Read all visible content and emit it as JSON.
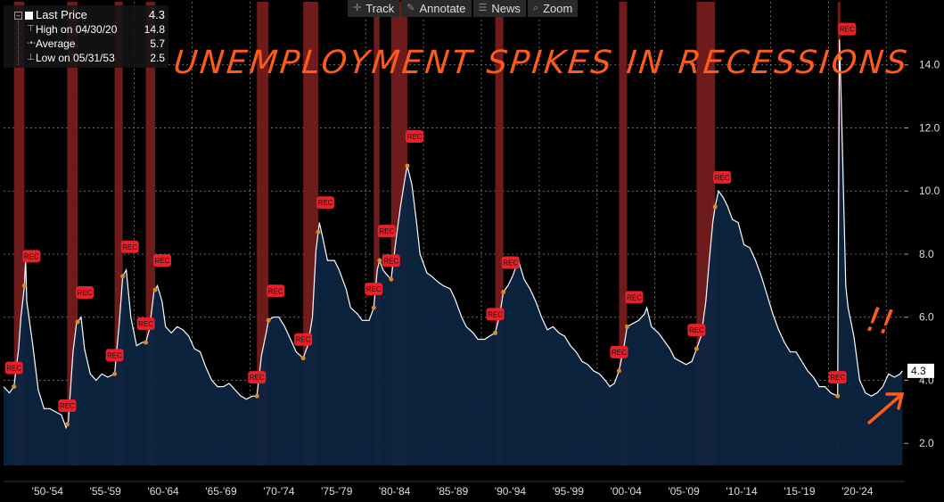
{
  "toolbar": {
    "items": [
      {
        "label": "Track",
        "icon": "crosshair-icon"
      },
      {
        "label": "Annotate",
        "icon": "pen-icon"
      },
      {
        "label": "News",
        "icon": "news-icon"
      },
      {
        "label": "Zoom",
        "icon": "magnifier-icon"
      }
    ]
  },
  "legend": {
    "main_label": "Last Price",
    "main_value": "4.3",
    "high_label": "High on 04/30/20",
    "high_value": "14.8",
    "avg_label": "Average",
    "avg_value": "5.7",
    "low_label": "Low on 05/31/53",
    "low_value": "2.5"
  },
  "annotation": {
    "text": "UNEMPLOYMENT SPIKES IN RECESSIONS",
    "exclaim": "!!"
  },
  "colors": {
    "line": "#ffffff",
    "area": "#0c2440",
    "recession": "#7a1e1e",
    "rec_marker": "#e8202a",
    "annotation": "#ff5a1a",
    "grid": "#8c8c8c"
  },
  "chart_data": {
    "type": "area",
    "ylim": [
      1.3,
      16.0
    ],
    "xlim": [
      1948.0,
      2025.9
    ],
    "yticks": [
      2.0,
      4.0,
      6.0,
      8.0,
      10.0,
      12.0,
      14.0
    ],
    "ytick_labels": [
      "2.0",
      "4.0",
      "6.0",
      "8.0",
      "10.0",
      "12.0",
      "14.0"
    ],
    "xtick_labels": [
      "'50-'54",
      "'55-'59",
      "'60-'64",
      "'65-'69",
      "'70-'74",
      "'75-'79",
      "'80-'84",
      "'85-'89",
      "'90-'94",
      "'95-'99",
      "'00-'04",
      "'05-'09",
      "'10-'14",
      "'15-'19",
      "'20-'24"
    ],
    "last_value_label": "4.3",
    "grid": true,
    "rec_marker_label": "REC",
    "recessions": [
      [
        1948.9,
        1949.8
      ],
      [
        1953.5,
        1954.4
      ],
      [
        1957.6,
        1958.3
      ],
      [
        1960.3,
        1961.1
      ],
      [
        1969.9,
        1970.9
      ],
      [
        1973.9,
        1975.2
      ],
      [
        1980.0,
        1980.5
      ],
      [
        1981.5,
        1982.9
      ],
      [
        1990.5,
        1991.2
      ],
      [
        2001.2,
        2001.9
      ],
      [
        2007.9,
        2009.5
      ],
      [
        2020.1,
        2020.3
      ]
    ],
    "series": [
      {
        "values": [
          [
            1948.0,
            3.8
          ],
          [
            1948.5,
            3.6
          ],
          [
            1948.9,
            3.8
          ],
          [
            1949.3,
            5.0
          ],
          [
            1949.5,
            6.0
          ],
          [
            1949.8,
            7.0
          ],
          [
            1949.9,
            7.9
          ],
          [
            1950.0,
            6.5
          ],
          [
            1950.5,
            5.2
          ],
          [
            1951.0,
            3.7
          ],
          [
            1951.5,
            3.1
          ],
          [
            1952.0,
            3.1
          ],
          [
            1952.5,
            3.0
          ],
          [
            1953.0,
            2.9
          ],
          [
            1953.4,
            2.5
          ],
          [
            1953.6,
            2.7
          ],
          [
            1954.0,
            4.9
          ],
          [
            1954.3,
            5.8
          ],
          [
            1954.7,
            6.0
          ],
          [
            1955.0,
            5.0
          ],
          [
            1955.5,
            4.2
          ],
          [
            1956.0,
            4.0
          ],
          [
            1956.5,
            4.2
          ],
          [
            1957.0,
            4.1
          ],
          [
            1957.6,
            4.2
          ],
          [
            1958.0,
            5.8
          ],
          [
            1958.3,
            7.3
          ],
          [
            1958.6,
            7.5
          ],
          [
            1959.0,
            6.0
          ],
          [
            1959.5,
            5.1
          ],
          [
            1960.0,
            5.2
          ],
          [
            1960.3,
            5.2
          ],
          [
            1960.6,
            5.6
          ],
          [
            1961.0,
            6.8
          ],
          [
            1961.3,
            7.0
          ],
          [
            1961.7,
            6.5
          ],
          [
            1962.0,
            5.7
          ],
          [
            1962.5,
            5.5
          ],
          [
            1963.0,
            5.7
          ],
          [
            1963.5,
            5.6
          ],
          [
            1964.0,
            5.4
          ],
          [
            1964.5,
            5.0
          ],
          [
            1965.0,
            4.9
          ],
          [
            1965.5,
            4.4
          ],
          [
            1966.0,
            4.0
          ],
          [
            1966.5,
            3.8
          ],
          [
            1967.0,
            3.8
          ],
          [
            1967.5,
            3.9
          ],
          [
            1968.0,
            3.7
          ],
          [
            1968.5,
            3.5
          ],
          [
            1969.0,
            3.4
          ],
          [
            1969.5,
            3.5
          ],
          [
            1969.9,
            3.5
          ],
          [
            1970.3,
            4.8
          ],
          [
            1970.7,
            5.5
          ],
          [
            1970.9,
            5.9
          ],
          [
            1971.3,
            6.0
          ],
          [
            1971.8,
            6.0
          ],
          [
            1972.3,
            5.7
          ],
          [
            1972.8,
            5.3
          ],
          [
            1973.3,
            4.9
          ],
          [
            1973.9,
            4.7
          ],
          [
            1974.3,
            5.1
          ],
          [
            1974.7,
            6.0
          ],
          [
            1975.0,
            8.1
          ],
          [
            1975.3,
            9.0
          ],
          [
            1975.6,
            8.5
          ],
          [
            1976.0,
            7.8
          ],
          [
            1976.6,
            7.8
          ],
          [
            1977.0,
            7.5
          ],
          [
            1977.6,
            6.9
          ],
          [
            1978.0,
            6.3
          ],
          [
            1978.6,
            6.1
          ],
          [
            1979.0,
            5.9
          ],
          [
            1979.6,
            5.9
          ],
          [
            1980.0,
            6.3
          ],
          [
            1980.3,
            7.5
          ],
          [
            1980.5,
            7.8
          ],
          [
            1980.8,
            7.5
          ],
          [
            1981.0,
            7.4
          ],
          [
            1981.5,
            7.2
          ],
          [
            1981.9,
            8.4
          ],
          [
            1982.3,
            9.5
          ],
          [
            1982.7,
            10.4
          ],
          [
            1982.9,
            10.8
          ],
          [
            1983.3,
            10.2
          ],
          [
            1983.7,
            9.0
          ],
          [
            1984.0,
            8.0
          ],
          [
            1984.6,
            7.4
          ],
          [
            1985.0,
            7.3
          ],
          [
            1985.6,
            7.1
          ],
          [
            1986.0,
            7.0
          ],
          [
            1986.6,
            6.9
          ],
          [
            1987.0,
            6.6
          ],
          [
            1987.6,
            6.0
          ],
          [
            1988.0,
            5.7
          ],
          [
            1988.6,
            5.5
          ],
          [
            1989.0,
            5.3
          ],
          [
            1989.6,
            5.3
          ],
          [
            1990.0,
            5.4
          ],
          [
            1990.5,
            5.5
          ],
          [
            1990.9,
            6.1
          ],
          [
            1991.2,
            6.8
          ],
          [
            1991.6,
            7.0
          ],
          [
            1992.0,
            7.3
          ],
          [
            1992.5,
            7.8
          ],
          [
            1993.0,
            7.2
          ],
          [
            1993.5,
            6.9
          ],
          [
            1994.0,
            6.5
          ],
          [
            1994.5,
            6.0
          ],
          [
            1995.0,
            5.6
          ],
          [
            1995.5,
            5.7
          ],
          [
            1996.0,
            5.5
          ],
          [
            1996.5,
            5.4
          ],
          [
            1997.0,
            5.1
          ],
          [
            1997.5,
            4.9
          ],
          [
            1998.0,
            4.6
          ],
          [
            1998.5,
            4.5
          ],
          [
            1999.0,
            4.3
          ],
          [
            1999.5,
            4.2
          ],
          [
            2000.0,
            4.0
          ],
          [
            2000.4,
            3.8
          ],
          [
            2000.8,
            3.9
          ],
          [
            2001.2,
            4.3
          ],
          [
            2001.6,
            5.0
          ],
          [
            2001.9,
            5.7
          ],
          [
            2002.4,
            5.8
          ],
          [
            2002.9,
            5.9
          ],
          [
            2003.4,
            6.1
          ],
          [
            2003.6,
            6.3
          ],
          [
            2004.0,
            5.7
          ],
          [
            2004.6,
            5.5
          ],
          [
            2005.0,
            5.3
          ],
          [
            2005.6,
            5.0
          ],
          [
            2006.0,
            4.7
          ],
          [
            2006.5,
            4.6
          ],
          [
            2007.0,
            4.5
          ],
          [
            2007.5,
            4.6
          ],
          [
            2007.9,
            5.0
          ],
          [
            2008.3,
            5.4
          ],
          [
            2008.7,
            6.5
          ],
          [
            2009.0,
            7.8
          ],
          [
            2009.3,
            9.0
          ],
          [
            2009.5,
            9.5
          ],
          [
            2009.8,
            10.0
          ],
          [
            2010.2,
            9.8
          ],
          [
            2010.6,
            9.5
          ],
          [
            2011.0,
            9.1
          ],
          [
            2011.5,
            9.0
          ],
          [
            2012.0,
            8.3
          ],
          [
            2012.5,
            8.2
          ],
          [
            2013.0,
            7.8
          ],
          [
            2013.5,
            7.3
          ],
          [
            2014.0,
            6.7
          ],
          [
            2014.5,
            6.1
          ],
          [
            2015.0,
            5.6
          ],
          [
            2015.5,
            5.2
          ],
          [
            2016.0,
            4.9
          ],
          [
            2016.5,
            4.9
          ],
          [
            2017.0,
            4.6
          ],
          [
            2017.5,
            4.3
          ],
          [
            2018.0,
            4.1
          ],
          [
            2018.5,
            3.8
          ],
          [
            2019.0,
            3.8
          ],
          [
            2019.5,
            3.6
          ],
          [
            2020.1,
            3.5
          ],
          [
            2020.25,
            14.8
          ],
          [
            2020.4,
            13.0
          ],
          [
            2020.6,
            10.0
          ],
          [
            2020.8,
            7.0
          ],
          [
            2021.0,
            6.3
          ],
          [
            2021.5,
            5.4
          ],
          [
            2022.0,
            4.0
          ],
          [
            2022.5,
            3.6
          ],
          [
            2023.0,
            3.5
          ],
          [
            2023.5,
            3.6
          ],
          [
            2024.0,
            3.8
          ],
          [
            2024.5,
            4.2
          ],
          [
            2025.0,
            4.1
          ],
          [
            2025.5,
            4.2
          ],
          [
            2025.7,
            4.3
          ]
        ]
      }
    ]
  }
}
